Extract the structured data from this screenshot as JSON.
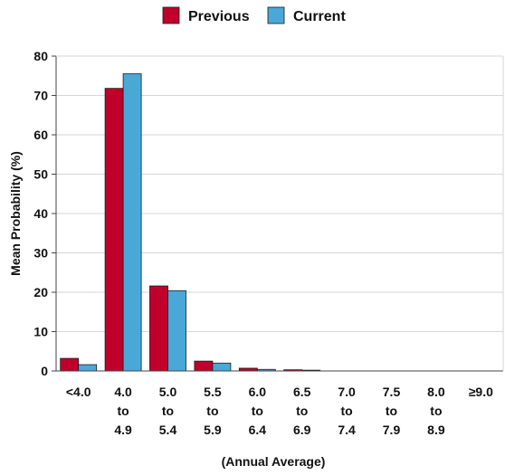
{
  "chart_data": {
    "type": "bar",
    "title": "",
    "xlabel": "(Annual Average)",
    "ylabel": "Mean Probability (%)",
    "ylim": [
      0,
      80
    ],
    "yticks": [
      0,
      10,
      20,
      30,
      40,
      50,
      60,
      70,
      80
    ],
    "grid": true,
    "legend_position": "top-center",
    "categories": [
      [
        "<4.0"
      ],
      [
        "4.0",
        "to",
        "4.9"
      ],
      [
        "5.0",
        "to",
        "5.4"
      ],
      [
        "5.5",
        "to",
        "5.9"
      ],
      [
        "6.0",
        "to",
        "6.4"
      ],
      [
        "6.5",
        "to",
        "6.9"
      ],
      [
        "7.0",
        "to",
        "7.4"
      ],
      [
        "7.5",
        "to",
        "7.9"
      ],
      [
        "8.0",
        "to",
        "8.9"
      ],
      [
        "≥9.0"
      ]
    ],
    "series": [
      {
        "name": "Previous",
        "color": "#c0002a",
        "values": [
          3.2,
          71.8,
          21.6,
          2.5,
          0.7,
          0.3,
          0.1,
          0.0,
          0.0,
          0.0
        ]
      },
      {
        "name": "Current",
        "color": "#4aa8d8",
        "values": [
          1.6,
          75.5,
          20.4,
          2.0,
          0.4,
          0.2,
          0.0,
          0.0,
          0.0,
          0.0
        ]
      }
    ]
  }
}
